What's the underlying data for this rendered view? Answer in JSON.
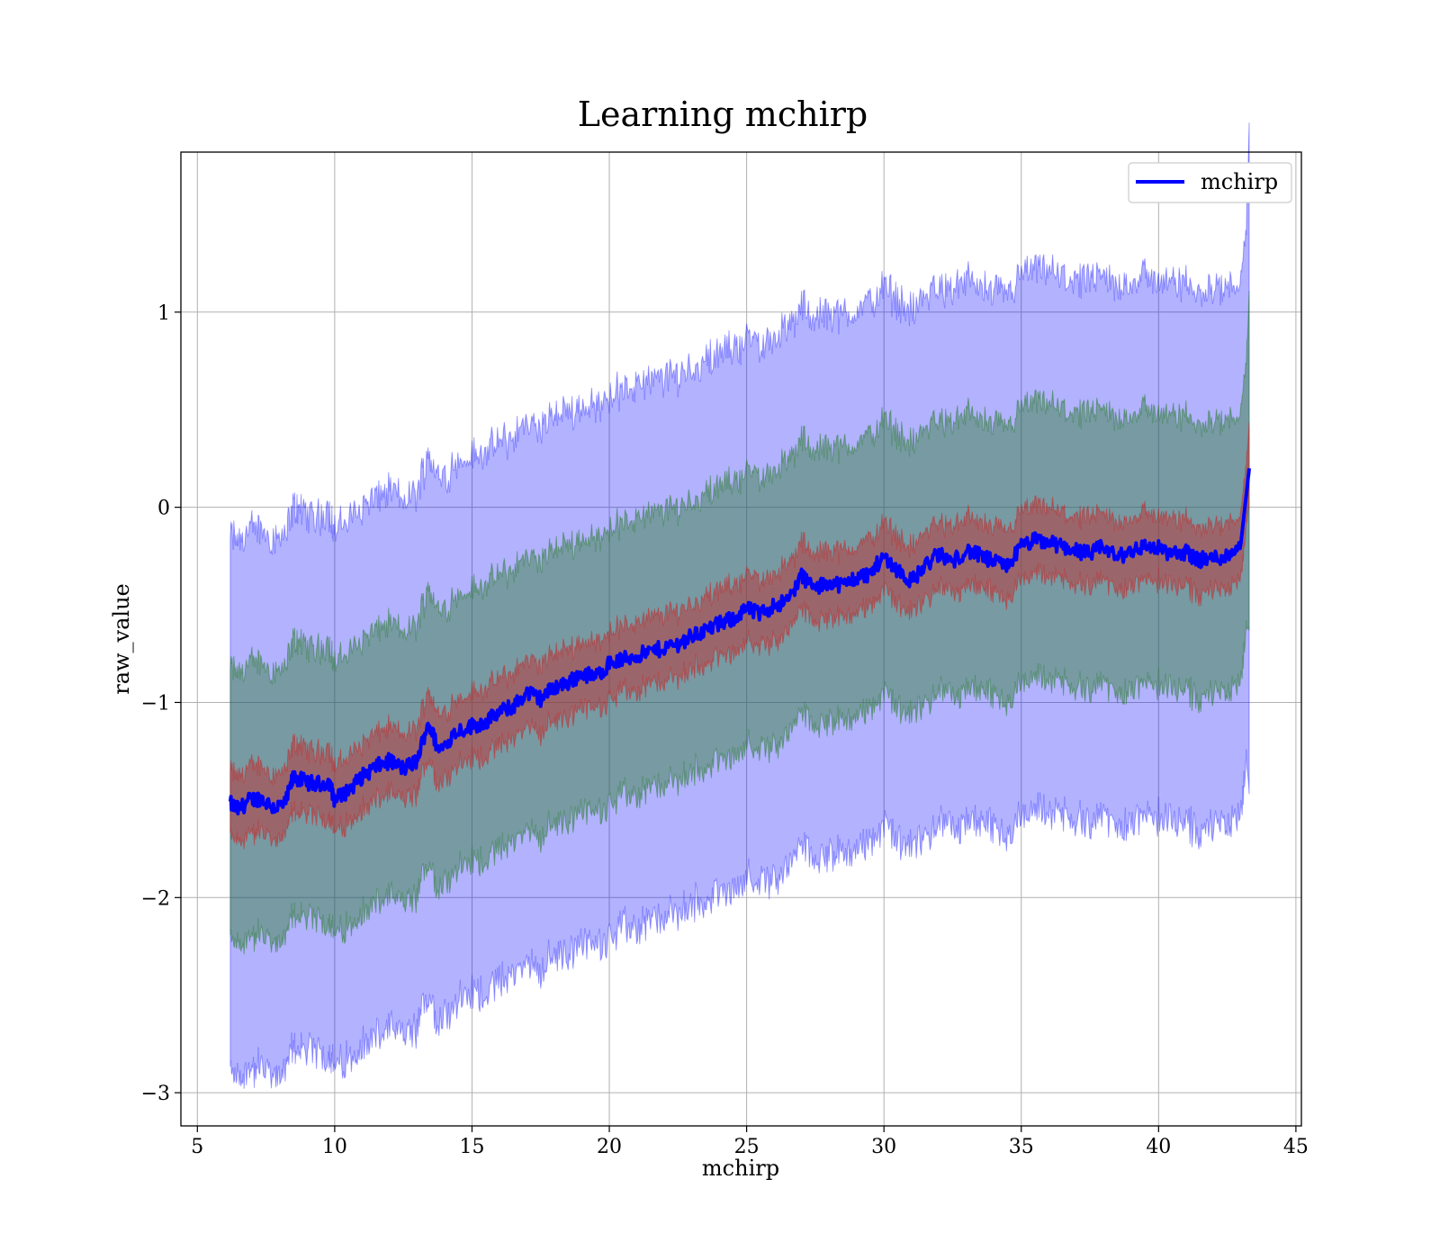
{
  "chart_data": {
    "type": "line",
    "title": "Learning mchirp",
    "xlabel": "mchirp",
    "ylabel": "raw_value",
    "xlim": [
      4.4,
      45.2
    ],
    "ylim": [
      -3.17,
      1.82
    ],
    "xticks": [
      5,
      10,
      15,
      20,
      25,
      30,
      35,
      40,
      45
    ],
    "xtick_labels": [
      "5",
      "10",
      "15",
      "20",
      "25",
      "30",
      "35",
      "40",
      "45"
    ],
    "yticks": [
      -3,
      -2,
      -1,
      0,
      1
    ],
    "ytick_labels": [
      "−3",
      "−2",
      "−1",
      "0",
      "1"
    ],
    "grid": true,
    "legend_position": "top-right",
    "series": [
      {
        "name": "mchirp",
        "color": "#0000ff",
        "x": [
          6.2,
          6.5,
          6.9,
          7.3,
          7.8,
          8.2,
          8.5,
          8.8,
          9.3,
          9.8,
          10.0,
          10.5,
          11.0,
          11.5,
          12.0,
          12.5,
          13.0,
          13.4,
          13.8,
          14.4,
          15.0,
          15.5,
          16.0,
          16.5,
          17.0,
          17.5,
          18.0,
          18.5,
          19.0,
          19.5,
          20.0,
          20.5,
          21.0,
          21.5,
          22.0,
          22.5,
          23.0,
          23.5,
          24.0,
          24.5,
          25.0,
          25.5,
          26.0,
          26.5,
          27.0,
          27.5,
          28.0,
          28.5,
          29.0,
          29.5,
          30.0,
          30.5,
          31.0,
          31.5,
          32.0,
          32.5,
          33.0,
          33.5,
          34.0,
          34.5,
          35.0,
          35.5,
          36.0,
          36.5,
          37.0,
          37.5,
          38.0,
          38.5,
          39.0,
          39.5,
          40.0,
          40.5,
          41.0,
          41.5,
          42.0,
          42.5,
          43.0,
          43.3
        ],
        "mean": [
          -1.52,
          -1.55,
          -1.5,
          -1.49,
          -1.54,
          -1.52,
          -1.38,
          -1.4,
          -1.42,
          -1.41,
          -1.5,
          -1.45,
          -1.38,
          -1.33,
          -1.3,
          -1.34,
          -1.3,
          -1.1,
          -1.25,
          -1.15,
          -1.12,
          -1.1,
          -1.05,
          -1.02,
          -0.95,
          -0.98,
          -0.92,
          -0.9,
          -0.85,
          -0.87,
          -0.8,
          -0.78,
          -0.76,
          -0.74,
          -0.72,
          -0.7,
          -0.66,
          -0.63,
          -0.6,
          -0.57,
          -0.52,
          -0.55,
          -0.5,
          -0.48,
          -0.35,
          -0.42,
          -0.38,
          -0.4,
          -0.36,
          -0.34,
          -0.25,
          -0.32,
          -0.38,
          -0.3,
          -0.24,
          -0.28,
          -0.22,
          -0.25,
          -0.28,
          -0.3,
          -0.2,
          -0.17,
          -0.18,
          -0.2,
          -0.22,
          -0.24,
          -0.2,
          -0.26,
          -0.22,
          -0.2,
          -0.21,
          -0.24,
          -0.23,
          -0.27,
          -0.26,
          -0.25,
          -0.18,
          0.2
        ],
        "band_inner": 0.17,
        "band_middle": 0.7,
        "band_outer": 1.38
      }
    ]
  }
}
